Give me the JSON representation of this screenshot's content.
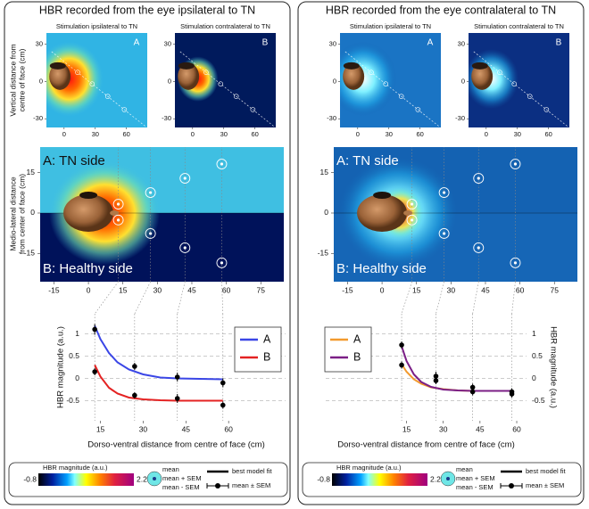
{
  "panels": [
    {
      "title": "HBR recorded from the eye ipsilateral to TN"
    },
    {
      "title": "HBR recorded from the eye contralateral to TN"
    }
  ],
  "small_map": {
    "titles": [
      "Stimulation ipsilateral to TN",
      "Stimulation contralateral to TN"
    ],
    "letters": [
      "A",
      "B"
    ],
    "ylabel": [
      "Vertical distance from",
      "centre of face (cm)"
    ],
    "xlim": [
      -17,
      80
    ],
    "ylim": [
      -37,
      39
    ],
    "xticks": [
      0,
      30,
      60
    ],
    "yticks": [
      -30,
      0,
      30
    ]
  },
  "big_map": {
    "labels": [
      "A: TN side",
      "B: Healthy side"
    ],
    "ylabel": [
      "Medio-lateral distance",
      "from center of face (cm)"
    ],
    "xlim": [
      -21,
      85
    ],
    "ylim": [
      -25.5,
      24.5
    ],
    "xticks": [
      -15,
      0,
      15,
      30,
      45,
      60,
      75
    ],
    "yticks": [
      -15,
      0,
      15
    ],
    "points": {
      "x": [
        13,
        27,
        42,
        58,
        13,
        27,
        42,
        58
      ],
      "y": [
        3.3,
        7.6,
        12.9,
        18.2,
        -2.6,
        -7.6,
        -12.9,
        -18.5
      ]
    }
  },
  "chart_data": [
    {
      "type": "line",
      "xlabel": "Dorso-ventral distance from centre of face (cm)",
      "ylabel": "HBR magnitude (a.u.)",
      "x": [
        13,
        27,
        42,
        58
      ],
      "xlim": [
        9.5,
        80
      ],
      "xticks": [
        15,
        30,
        45,
        60
      ],
      "ylim": [
        -0.95,
        1.45
      ],
      "yticks": [
        -0.5,
        0,
        0.5,
        1
      ],
      "yaxis_side": "left",
      "legend": "upper right",
      "grid": true,
      "series": [
        {
          "name": "A",
          "color": "#3a46e6",
          "values": [
            1.1,
            0.27,
            0.03,
            -0.1
          ],
          "errors": [
            0.12,
            0.08,
            0.1,
            0.1
          ],
          "fit": {
            "x": [
              13,
              15,
              18,
              21,
              25,
              30,
              36,
              42,
              50,
              58
            ],
            "values": [
              1.18,
              0.88,
              0.57,
              0.36,
              0.2,
              0.09,
              0.02,
              0,
              -0.01,
              -0.02
            ]
          }
        },
        {
          "name": "B",
          "color": "#e42222",
          "values": [
            0.15,
            -0.38,
            -0.45,
            -0.6
          ],
          "errors": [
            0.08,
            0.07,
            0.1,
            0.08
          ],
          "fit": {
            "x": [
              13,
              15,
              18,
              21,
              25,
              30,
              36,
              42,
              50,
              58
            ],
            "values": [
              0.3,
              0.04,
              -0.21,
              -0.34,
              -0.43,
              -0.47,
              -0.49,
              -0.5,
              -0.5,
              -0.5
            ]
          }
        }
      ]
    },
    {
      "type": "line",
      "xlabel": "Dorso-ventral distance from centre of face (cm)",
      "ylabel": "HBR magnitude (a.u.)",
      "x": [
        13,
        27,
        42,
        58
      ],
      "xlim": [
        -18,
        64
      ],
      "xticks": [
        15,
        30,
        45,
        60
      ],
      "ylim": [
        -0.95,
        1.45
      ],
      "yticks": [
        -0.5,
        0,
        0.5,
        1
      ],
      "yaxis_side": "right",
      "legend": "upper left",
      "grid": true,
      "series": [
        {
          "name": "A",
          "color": "#f29a2e",
          "values": [
            0.3,
            -0.05,
            -0.3,
            -0.35
          ],
          "errors": [
            0.08,
            0.08,
            0.08,
            0.08
          ],
          "fit": {
            "x": [
              13,
              15,
              18,
              21,
              25,
              30,
              36,
              42,
              50,
              58
            ],
            "values": [
              0.32,
              0.15,
              -0.02,
              -0.12,
              -0.2,
              -0.24,
              -0.27,
              -0.28,
              -0.28,
              -0.28
            ]
          }
        },
        {
          "name": "B",
          "color": "#7b1f86",
          "values": [
            0.75,
            0.05,
            -0.2,
            -0.3
          ],
          "errors": [
            0.08,
            0.1,
            0.08,
            0.08
          ],
          "fit": {
            "x": [
              13,
              15,
              18,
              21,
              25,
              30,
              36,
              42,
              50,
              58
            ],
            "values": [
              0.72,
              0.39,
              0.09,
              -0.08,
              -0.19,
              -0.25,
              -0.27,
              -0.28,
              -0.28,
              -0.28
            ]
          }
        }
      ]
    }
  ],
  "key": {
    "colorbar_title": "HBR magnitude (a.u.)",
    "colorbar_min": -0.8,
    "colorbar_max": 2.2,
    "circle": [
      "mean",
      "mean + SEM",
      "mean - SEM"
    ],
    "fit": "best model fit",
    "errorbar": "mean ± SEM"
  }
}
